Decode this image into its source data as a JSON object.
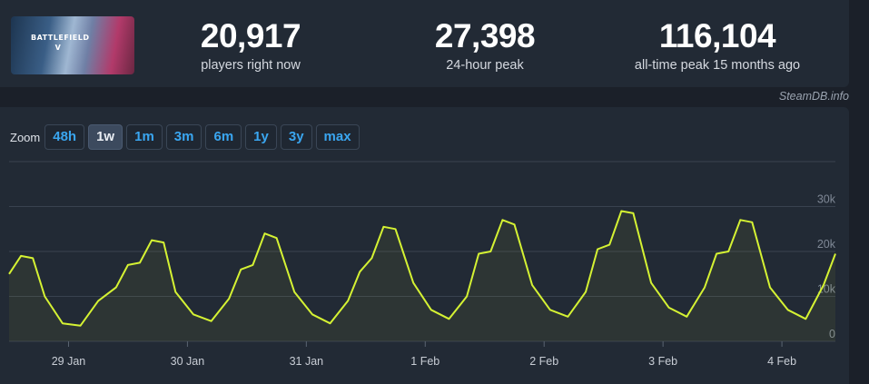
{
  "game": {
    "banner_text": "BATTLEFIELD V",
    "icon": "battlefield-v-banner"
  },
  "stats": {
    "players_now": {
      "value": "20,917",
      "label": "players right now"
    },
    "peak_24h": {
      "value": "27,398",
      "label": "24-hour peak"
    },
    "all_time_peak": {
      "value": "116,104",
      "label": "all-time peak 15 months ago"
    }
  },
  "credit": "SteamDB.info",
  "zoom": {
    "label": "Zoom",
    "options": [
      "48h",
      "1w",
      "1m",
      "3m",
      "6m",
      "1y",
      "3y",
      "max"
    ],
    "active": "1w"
  },
  "colors": {
    "line": "#d5f233",
    "accent": "#3aa6f0",
    "grid": "#39424f"
  },
  "chart_data": {
    "type": "line",
    "series": [
      {
        "x": [
          0.0,
          0.1,
          0.2,
          0.3,
          0.45,
          0.6,
          0.75,
          0.9,
          1.0,
          1.1,
          1.2,
          1.3,
          1.4,
          1.55,
          1.7,
          1.85,
          1.95,
          2.05,
          2.15,
          2.25,
          2.4,
          2.55,
          2.7,
          2.85,
          2.95,
          3.05,
          3.15,
          3.25,
          3.4,
          3.55,
          3.7,
          3.85,
          3.95,
          4.05,
          4.15,
          4.25,
          4.4,
          4.55,
          4.7,
          4.85,
          4.95,
          5.05,
          5.15,
          5.25,
          5.4,
          5.55,
          5.7,
          5.85,
          5.95,
          6.05,
          6.15,
          6.25,
          6.4,
          6.55,
          6.7,
          6.85,
          6.95
        ],
        "y": [
          15000,
          19000,
          18500,
          10000,
          4000,
          3500,
          9000,
          12000,
          17000,
          17500,
          22500,
          22000,
          11000,
          6000,
          4500,
          9500,
          16000,
          17000,
          24000,
          23000,
          11000,
          6000,
          4000,
          9000,
          15500,
          18500,
          25500,
          25000,
          13000,
          7000,
          5000,
          10000,
          19500,
          20000,
          27000,
          26000,
          12500,
          7000,
          5500,
          11000,
          20500,
          21500,
          29000,
          28500,
          13000,
          7500,
          5500,
          12000,
          19500,
          20000,
          27000,
          26500,
          12000,
          7000,
          5000,
          12500,
          19500
        ]
      }
    ],
    "x_ticks": [
      {
        "x": 0.5,
        "label": "29 Jan"
      },
      {
        "x": 1.5,
        "label": "30 Jan"
      },
      {
        "x": 2.5,
        "label": "31 Jan"
      },
      {
        "x": 3.5,
        "label": "1 Feb"
      },
      {
        "x": 4.5,
        "label": "2 Feb"
      },
      {
        "x": 5.5,
        "label": "3 Feb"
      },
      {
        "x": 6.5,
        "label": "4 Feb"
      }
    ],
    "y_ticks": [
      {
        "y": 0,
        "label": "0"
      },
      {
        "y": 10000,
        "label": "10k"
      },
      {
        "y": 20000,
        "label": "20k"
      },
      {
        "y": 30000,
        "label": "30k"
      }
    ],
    "xlim": [
      0,
      6.95
    ],
    "ylim": [
      0,
      40000
    ],
    "grid": true
  }
}
